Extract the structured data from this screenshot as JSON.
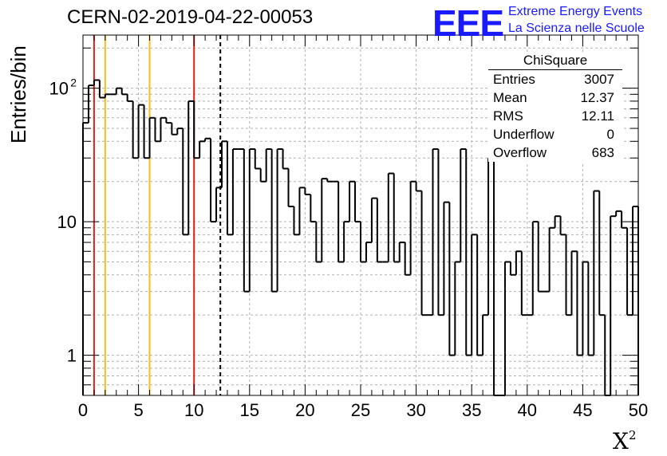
{
  "header": {
    "title": "CERN-02-2019-04-22-00053",
    "logo": "EEE",
    "logo_line1": "Extreme Energy Events",
    "logo_line2": "La Scienza nelle Scuole"
  },
  "stats": {
    "name": "ChiSquare",
    "rows": [
      {
        "label": "Entries",
        "value": "3007"
      },
      {
        "label": "Mean",
        "value": "12.37"
      },
      {
        "label": "RMS",
        "value": "12.11"
      },
      {
        "label": "Underflow",
        "value": "0"
      },
      {
        "label": "Overflow",
        "value": "683"
      }
    ]
  },
  "chart_data": {
    "type": "histogram",
    "xlabel_main": "X",
    "xlabel_sup": "2",
    "ylabel": "Entries/bin",
    "xlim": [
      0,
      50
    ],
    "ylim": [
      0.5,
      250
    ],
    "yscale": "log",
    "grid": true,
    "bin_width": 0.5,
    "x_ticks": [
      "0",
      "5",
      "10",
      "15",
      "20",
      "25",
      "30",
      "35",
      "40",
      "45",
      "50"
    ],
    "y_tick_labels": [
      {
        "value": 1,
        "label": "1"
      },
      {
        "value": 10,
        "label": "10"
      },
      {
        "value": 100,
        "label": "10",
        "sup": "2"
      }
    ],
    "counts": [
      55,
      105,
      115,
      85,
      90,
      90,
      100,
      90,
      80,
      30,
      75,
      30,
      60,
      40,
      60,
      55,
      45,
      50,
      8,
      80,
      30,
      40,
      42,
      10,
      18,
      40,
      8,
      35,
      35,
      3,
      35,
      25,
      20,
      35,
      3,
      35,
      25,
      13,
      8,
      18,
      16,
      10,
      5,
      21,
      20,
      20,
      5,
      10,
      20,
      10,
      5,
      7,
      15,
      5,
      5,
      23,
      5,
      7,
      4,
      20,
      17,
      2,
      2,
      35,
      2,
      14,
      1,
      5,
      35,
      1,
      8,
      1,
      2,
      30,
      0,
      0,
      5,
      4,
      6,
      2,
      2,
      10,
      3,
      3,
      9,
      11,
      8,
      2,
      6,
      1,
      5,
      1,
      17,
      2,
      0,
      11,
      12,
      9,
      2,
      13
    ],
    "vertical_lines": [
      {
        "x": 1,
        "color": "#e02020",
        "style": "solid"
      },
      {
        "x": 2,
        "color": "#f0c020",
        "style": "solid"
      },
      {
        "x": 6,
        "color": "#f0c020",
        "style": "solid"
      },
      {
        "x": 10,
        "color": "#e02020",
        "style": "solid"
      },
      {
        "x": 12.37,
        "color": "#000000",
        "style": "dashed"
      }
    ]
  }
}
